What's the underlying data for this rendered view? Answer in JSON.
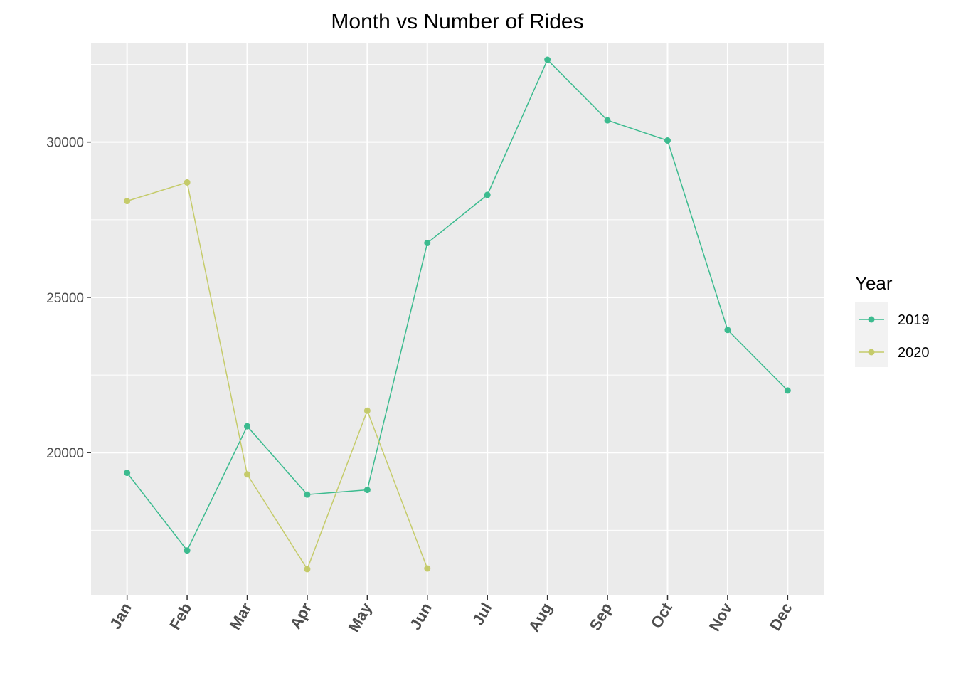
{
  "chart_data": {
    "type": "line",
    "title": "Month vs Number of Rides",
    "xlabel": "",
    "ylabel": "",
    "categories": [
      "Jan",
      "Feb",
      "Mar",
      "Apr",
      "May",
      "Jun",
      "Jul",
      "Aug",
      "Sep",
      "Oct",
      "Nov",
      "Dec"
    ],
    "yticks": [
      20000,
      25000,
      30000
    ],
    "ylim": [
      15400,
      33200
    ],
    "grid": true,
    "legend": {
      "title": "Year",
      "position": "right"
    },
    "series": [
      {
        "name": "2019",
        "color": "#3cbb8f",
        "values": [
          19350,
          16850,
          20850,
          18650,
          18800,
          26750,
          28300,
          32650,
          30700,
          30050,
          23950,
          22000
        ]
      },
      {
        "name": "2020",
        "color": "#c5cb6a",
        "values": [
          28100,
          28700,
          19300,
          16250,
          21350,
          16270,
          null,
          null,
          null,
          null,
          null,
          null
        ]
      }
    ]
  }
}
